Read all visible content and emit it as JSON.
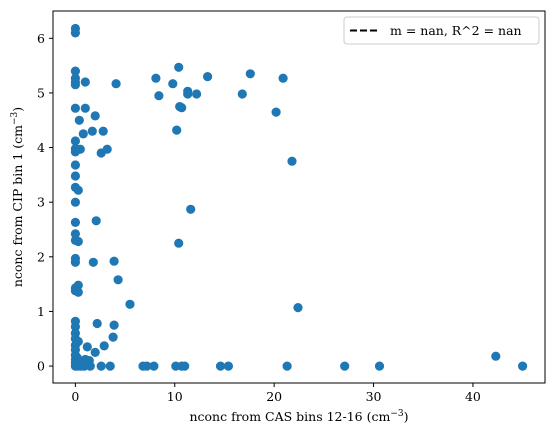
{
  "chart_data": {
    "type": "scatter",
    "xlabel": "nconc from CAS bins 12-16 (cm",
    "xlabel_sup": "−3",
    "xlabel_end": ")",
    "ylabel": "nconc from CIP bin 1 (cm",
    "ylabel_sup": "−3",
    "ylabel_end": ")",
    "xlim": [
      -2.25,
      47.25
    ],
    "ylim": [
      -0.31,
      6.5
    ],
    "x_ticks": [
      0,
      10,
      20,
      30,
      40
    ],
    "y_ticks": [
      0,
      1,
      2,
      3,
      4,
      5,
      6
    ],
    "grid": false,
    "legend_position": "top-right",
    "legend": {
      "label": "m = nan, R^2 = nan",
      "style": "dashed",
      "color": "#000000"
    },
    "marker_color": "#1f77b4",
    "series": [
      {
        "points": [
          [
            0,
            6.18
          ],
          [
            0,
            6.1
          ],
          [
            0,
            5.4
          ],
          [
            0,
            5.27
          ],
          [
            0,
            5.2
          ],
          [
            0,
            5.15
          ],
          [
            0,
            4.72
          ],
          [
            0,
            4.12
          ],
          [
            0,
            3.98
          ],
          [
            0,
            3.92
          ],
          [
            0,
            3.68
          ],
          [
            0,
            3.48
          ],
          [
            0,
            3.27
          ],
          [
            0,
            3.0
          ],
          [
            0,
            2.63
          ],
          [
            0,
            2.42
          ],
          [
            0,
            2.3
          ],
          [
            0,
            1.97
          ],
          [
            0,
            1.9
          ],
          [
            0,
            1.43
          ],
          [
            0,
            1.38
          ],
          [
            0,
            0.82
          ],
          [
            0,
            0.72
          ],
          [
            0,
            0.6
          ],
          [
            0,
            0.5
          ],
          [
            0,
            0.38
          ],
          [
            0,
            0.3
          ],
          [
            0,
            0.2
          ],
          [
            0,
            0.12
          ],
          [
            0,
            0.06
          ],
          [
            0,
            0.0
          ],
          [
            0.2,
            0.15
          ],
          [
            0.2,
            0.03
          ],
          [
            0.25,
            0.0
          ],
          [
            0.3,
            3.22
          ],
          [
            0.3,
            2.28
          ],
          [
            0.3,
            1.48
          ],
          [
            0.3,
            1.35
          ],
          [
            0.3,
            0.45
          ],
          [
            0.4,
            4.5
          ],
          [
            0.5,
            3.97
          ],
          [
            0.5,
            0.05
          ],
          [
            0.6,
            0.0
          ],
          [
            0.8,
            4.25
          ],
          [
            1.0,
            5.2
          ],
          [
            1.0,
            4.72
          ],
          [
            1.0,
            0.12
          ],
          [
            0.9,
            0.0
          ],
          [
            1.2,
            0.35
          ],
          [
            1.4,
            0.1
          ],
          [
            1.5,
            0.0
          ],
          [
            1.7,
            4.3
          ],
          [
            1.8,
            1.9
          ],
          [
            2.0,
            4.58
          ],
          [
            2.1,
            2.66
          ],
          [
            2.0,
            0.25
          ],
          [
            2.2,
            0.78
          ],
          [
            2.6,
            3.9
          ],
          [
            2.6,
            0.0
          ],
          [
            2.8,
            4.3
          ],
          [
            2.9,
            0.37
          ],
          [
            3.2,
            3.97
          ],
          [
            3.5,
            0.0
          ],
          [
            3.8,
            0.53
          ],
          [
            3.9,
            1.92
          ],
          [
            3.9,
            0.75
          ],
          [
            4.1,
            5.17
          ],
          [
            4.3,
            1.58
          ],
          [
            5.5,
            1.13
          ],
          [
            6.8,
            0.0
          ],
          [
            7.2,
            0.0
          ],
          [
            7.9,
            0.0
          ],
          [
            8.1,
            5.27
          ],
          [
            8.4,
            4.95
          ],
          [
            9.8,
            5.17
          ],
          [
            10.2,
            4.32
          ],
          [
            10.1,
            0.0
          ],
          [
            10.4,
            2.25
          ],
          [
            10.4,
            5.47
          ],
          [
            10.5,
            4.75
          ],
          [
            10.7,
            4.73
          ],
          [
            10.7,
            0.0
          ],
          [
            11.0,
            0.0
          ],
          [
            11.3,
            5.03
          ],
          [
            11.3,
            4.98
          ],
          [
            11.6,
            2.87
          ],
          [
            12.2,
            4.98
          ],
          [
            13.3,
            5.3
          ],
          [
            14.6,
            0.0
          ],
          [
            15.4,
            0.0
          ],
          [
            16.8,
            4.98
          ],
          [
            17.6,
            5.35
          ],
          [
            20.2,
            4.65
          ],
          [
            20.9,
            5.27
          ],
          [
            21.3,
            0.0
          ],
          [
            21.8,
            3.75
          ],
          [
            22.4,
            1.07
          ],
          [
            27.1,
            0.0
          ],
          [
            30.6,
            0.0
          ],
          [
            42.3,
            0.18
          ],
          [
            45.0,
            0.0
          ]
        ]
      }
    ]
  }
}
